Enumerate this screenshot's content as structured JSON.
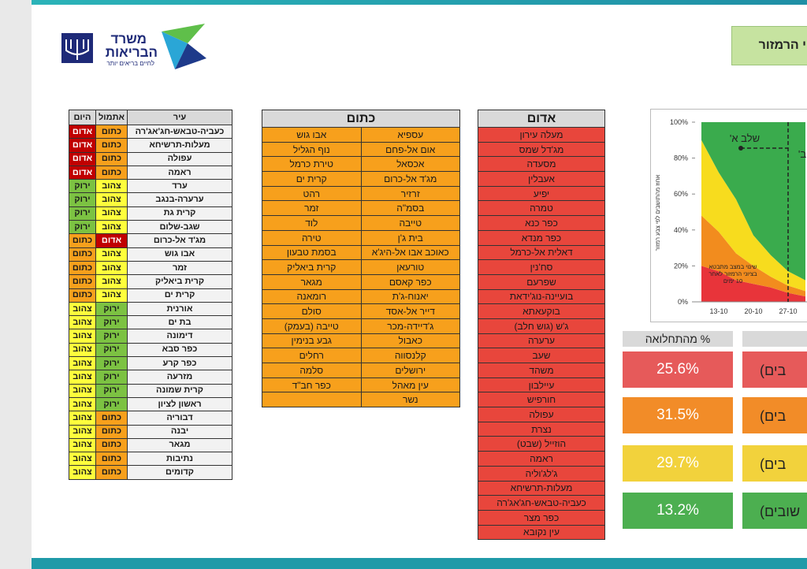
{
  "header": {
    "logo": {
      "line1": "משרד",
      "line2": "הבריאות",
      "slogan": "לחיים בריאים יותר"
    },
    "title": "י הרמזור"
  },
  "status_colors": {
    "אדום": {
      "fill": "#c00000",
      "text": "#ffffff"
    },
    "כתום": {
      "fill": "#f7a01c",
      "text": "#1a1a1a"
    },
    "צהוב": {
      "fill": "#ffff3c",
      "text": "#1a1a1a"
    },
    "ירוק": {
      "fill": "#7cc242",
      "text": "#1a1a1a"
    }
  },
  "cities_table": {
    "columns": [
      "עיר",
      "אתמול",
      "היום"
    ],
    "rows": [
      [
        "כעביה-טבאש-חג'אג'רה",
        "כתום",
        "אדום"
      ],
      [
        "מעלות-תרשיחא",
        "כתום",
        "אדום"
      ],
      [
        "עפולה",
        "כתום",
        "אדום"
      ],
      [
        "ראמה",
        "כתום",
        "אדום"
      ],
      [
        "ערד",
        "צהוב",
        "ירוק"
      ],
      [
        "ערערה-בנגב",
        "צהוב",
        "ירוק"
      ],
      [
        "קרית גת",
        "צהוב",
        "ירוק"
      ],
      [
        "שגב-שלום",
        "צהוב",
        "ירוק"
      ],
      [
        "מג'ד אל-כרום",
        "אדום",
        "כתום"
      ],
      [
        "אבו גוש",
        "צהוב",
        "כתום"
      ],
      [
        "זמר",
        "צהוב",
        "כתום"
      ],
      [
        "קרית ביאליק",
        "צהוב",
        "כתום"
      ],
      [
        "קרית ים",
        "צהוב",
        "כתום"
      ],
      [
        "אורנית",
        "ירוק",
        "צהוב"
      ],
      [
        "בת ים",
        "ירוק",
        "צהוב"
      ],
      [
        "דימונה",
        "ירוק",
        "צהוב"
      ],
      [
        "כפר סבא",
        "ירוק",
        "צהוב"
      ],
      [
        "כפר קרע",
        "ירוק",
        "צהוב"
      ],
      [
        "מזרעה",
        "ירוק",
        "צהוב"
      ],
      [
        "קרית שמונה",
        "ירוק",
        "צהוב"
      ],
      [
        "ראשון לציון",
        "ירוק",
        "צהוב"
      ],
      [
        "דבוריה",
        "כתום",
        "צהוב"
      ],
      [
        "יבנה",
        "כתום",
        "צהוב"
      ],
      [
        "מגאר",
        "כתום",
        "צהוב"
      ],
      [
        "נתיבות",
        "כתום",
        "צהוב"
      ],
      [
        "קדומים",
        "כתום",
        "צהוב"
      ]
    ]
  },
  "orange_table": {
    "title": "כתום",
    "rows": [
      [
        "עספיא",
        "אבו גוש"
      ],
      [
        "אום אל-פחם",
        "נוף הגליל"
      ],
      [
        "אכסאל",
        "טירת כרמל"
      ],
      [
        "מג'ד אל-כרום",
        "קרית ים"
      ],
      [
        "זרזיר",
        "רהט"
      ],
      [
        "בסמ\"ה",
        "זמר"
      ],
      [
        "טייבה",
        "לוד"
      ],
      [
        "בית ג'ן",
        "טירה"
      ],
      [
        "כאוכב אבו אל-היג'א",
        "בסמת טבעון"
      ],
      [
        "טורעאן",
        "קרית ביאליק"
      ],
      [
        "כפר קאסם",
        "מגאר"
      ],
      [
        "יאנוח-ג'ת",
        "רומאנה"
      ],
      [
        "דייר אל-אסד",
        "סולם"
      ],
      [
        "ג'דיידה-מכר",
        "טייבה (בעמק)"
      ],
      [
        "כאבול",
        "גבע בנימין"
      ],
      [
        "קלנסווה",
        "רחלים"
      ],
      [
        "ירושלים",
        "סלמה"
      ],
      [
        "עין מאהל",
        "כפר חב\"ד"
      ],
      [
        "נשר"
      ]
    ]
  },
  "red_table": {
    "title": "אדום",
    "rows": [
      "מעלה עירון",
      "מג'דל שמס",
      "מסעדה",
      "אעבלין",
      "יפיע",
      "טמרה",
      "כפר כנא",
      "כפר מנדא",
      "דאלית אל-כרמל",
      "סח'נין",
      "שפרעם",
      "בועיינה-נוג'ידאת",
      "בוקעאתא",
      "ג'ש (גוש חלב)",
      "ערערה",
      "שעב",
      "משהד",
      "עיילבון",
      "חורפיש",
      "עפולה",
      "נצרת",
      "הוזייל (שבט)",
      "ראמה",
      "ג'לג'וליה",
      "מעלות-תרשיחא",
      "כעביה-טבאש-חג'אג'רה",
      "כפר מצר",
      "עין נקובא"
    ]
  },
  "chart_data": {
    "type": "area",
    "stacked": true,
    "y_label": "אחוז מהתושבים לפי צבע רמזור",
    "categories": [
      null,
      "13-10",
      null,
      "20-10",
      null,
      "27-10",
      null
    ],
    "series": [
      {
        "color": "#e8343a",
        "values": [
          20,
          17,
          12,
          10,
          8,
          5,
          3
        ]
      },
      {
        "color": "#f28c1e",
        "values": [
          28,
          22,
          15,
          10,
          6,
          4,
          3
        ]
      },
      {
        "color": "#f7dc1e",
        "values": [
          42,
          33,
          30,
          17,
          12,
          8,
          6
        ]
      },
      {
        "color": "#3aab4d",
        "values": [
          10,
          28,
          43,
          63,
          74,
          83,
          88
        ]
      }
    ],
    "ylim": [
      0,
      100
    ],
    "yticks": [
      {
        "value": 0,
        "label": "0%"
      },
      {
        "value": 20,
        "label": "20%"
      },
      {
        "value": 40,
        "label": "40%"
      },
      {
        "value": 60,
        "label": "60%"
      },
      {
        "value": 80,
        "label": "80%"
      },
      {
        "value": 100,
        "label": "100%"
      }
    ],
    "annotations": [
      "שלב א'",
      "ב'",
      "שינוי במצב מתבטא",
      "בציוני הרמזור לאחר",
      "10 ימים"
    ]
  },
  "morbidity": {
    "title": "% מהתחלואה",
    "rows": [
      {
        "label": "בים)",
        "value": "25.6%",
        "color": "#e65a5a"
      },
      {
        "label": "בים)",
        "value": "31.5%",
        "color": "#f28c28"
      },
      {
        "label": "בים)",
        "value": "29.7%",
        "color": "#f2d23c"
      },
      {
        "label": "שובים)",
        "value": "13.2%",
        "color": "#4caf50"
      }
    ]
  }
}
